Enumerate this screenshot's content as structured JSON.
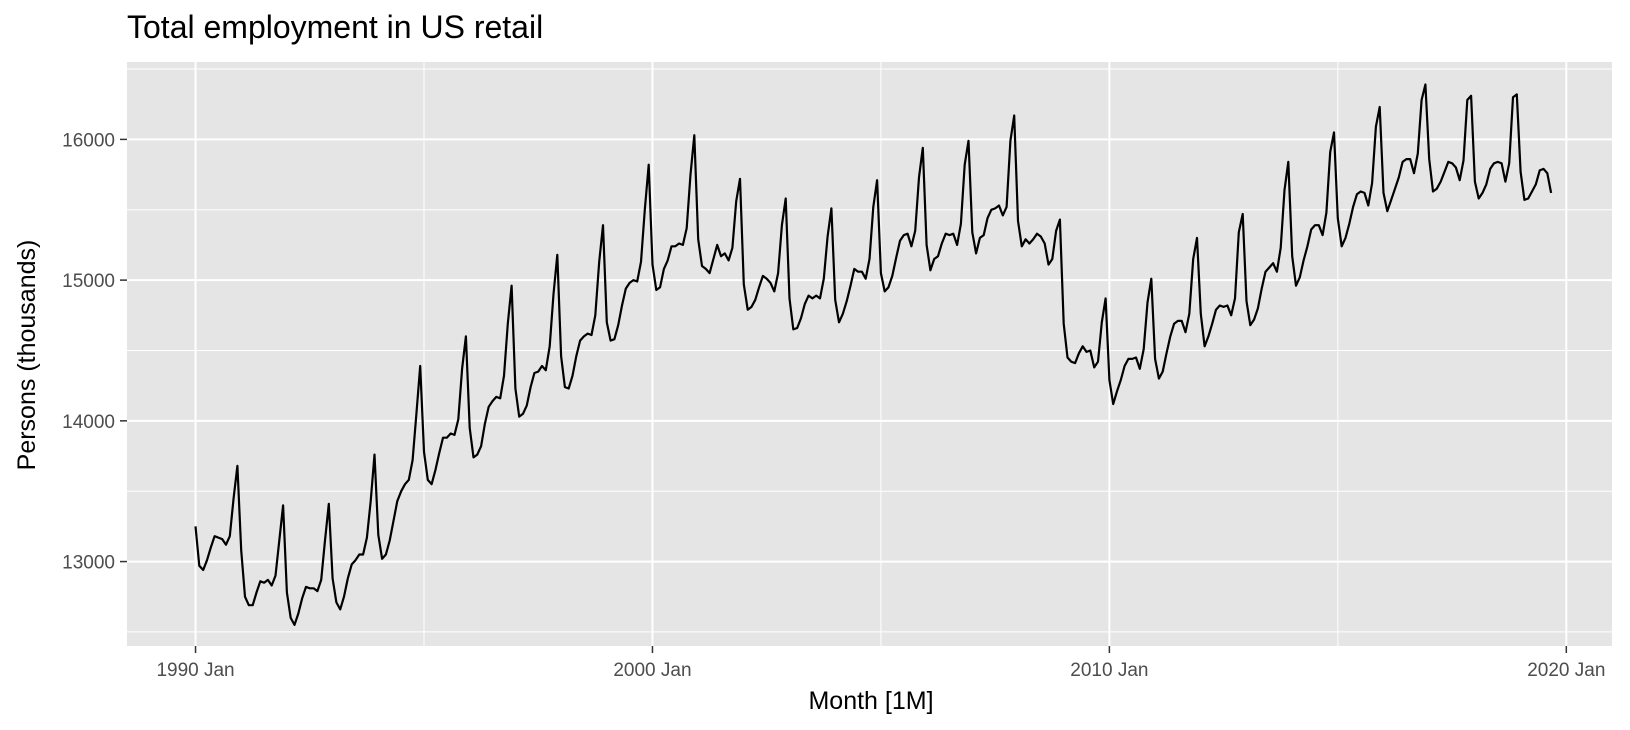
{
  "chart_data": {
    "type": "line",
    "title": "Total employment in US retail",
    "xlabel": "Month [1M]",
    "ylabel": "Persons (thousands)",
    "x_ticks": [
      {
        "value": 1990,
        "label": "1990 Jan"
      },
      {
        "value": 2000,
        "label": "2000 Jan"
      },
      {
        "value": 2010,
        "label": "2010 Jan"
      },
      {
        "value": 2020,
        "label": "2020 Jan"
      }
    ],
    "y_ticks": [
      13000,
      14000,
      15000,
      16000
    ],
    "xlim": [
      1988.5,
      2021.0
    ],
    "ylim": [
      12400,
      16550
    ],
    "grid": true,
    "colors": {
      "panel": "#e5e5e5",
      "grid": "#ffffff",
      "line": "#000000"
    },
    "x_start": "1990 Jan",
    "series": [
      {
        "values": [
          13250,
          12970,
          12940,
          13010,
          13100,
          13180,
          13170,
          13160,
          13120,
          13180,
          13450,
          13680,
          13080,
          12750,
          12690,
          12690,
          12780,
          12860,
          12850,
          12870,
          12830,
          12900,
          13150,
          13400,
          12780,
          12600,
          12550,
          12630,
          12740,
          12820,
          12810,
          12810,
          12790,
          12870,
          13150,
          13410,
          12880,
          12710,
          12660,
          12750,
          12880,
          12980,
          13010,
          13050,
          13050,
          13170,
          13430,
          13760,
          13190,
          13020,
          13050,
          13150,
          13290,
          13430,
          13500,
          13550,
          13580,
          13720,
          14050,
          14390,
          13780,
          13580,
          13550,
          13650,
          13770,
          13880,
          13880,
          13910,
          13900,
          14010,
          14370,
          14600,
          13950,
          13740,
          13760,
          13820,
          13980,
          14100,
          14140,
          14170,
          14160,
          14320,
          14690,
          14960,
          14230,
          14030,
          14050,
          14110,
          14240,
          14340,
          14350,
          14390,
          14360,
          14530,
          14900,
          15180,
          14460,
          14240,
          14230,
          14320,
          14460,
          14570,
          14600,
          14620,
          14610,
          14750,
          15130,
          15390,
          14700,
          14570,
          14580,
          14680,
          14820,
          14940,
          14980,
          15000,
          14990,
          15130,
          15500,
          15820,
          15110,
          14930,
          14950,
          15080,
          15140,
          15240,
          15240,
          15260,
          15250,
          15370,
          15750,
          16030,
          15290,
          15100,
          15080,
          15050,
          15150,
          15250,
          15170,
          15190,
          15140,
          15230,
          15560,
          15720,
          14970,
          14790,
          14810,
          14860,
          14950,
          15030,
          15010,
          14980,
          14920,
          15050,
          15390,
          15580,
          14870,
          14650,
          14660,
          14730,
          14830,
          14890,
          14870,
          14890,
          14870,
          15010,
          15310,
          15510,
          14860,
          14700,
          14760,
          14850,
          14960,
          15080,
          15060,
          15060,
          15010,
          15150,
          15520,
          15710,
          15050,
          14920,
          14950,
          15030,
          15160,
          15280,
          15320,
          15330,
          15240,
          15350,
          15730,
          15940,
          15250,
          15070,
          15150,
          15170,
          15260,
          15330,
          15320,
          15330,
          15250,
          15400,
          15820,
          15990,
          15340,
          15190,
          15300,
          15320,
          15440,
          15500,
          15510,
          15530,
          15460,
          15520,
          15990,
          16170,
          15420,
          15240,
          15290,
          15260,
          15290,
          15330,
          15310,
          15260,
          15110,
          15150,
          15350,
          15430,
          14690,
          14450,
          14420,
          14410,
          14480,
          14530,
          14490,
          14500,
          14380,
          14420,
          14700,
          14870,
          14290,
          14120,
          14210,
          14290,
          14390,
          14440,
          14440,
          14450,
          14370,
          14510,
          14840,
          15010,
          14440,
          14300,
          14350,
          14480,
          14600,
          14690,
          14710,
          14710,
          14630,
          14760,
          15150,
          15300,
          14760,
          14530,
          14600,
          14690,
          14790,
          14820,
          14810,
          14820,
          14750,
          14870,
          15340,
          15470,
          14850,
          14680,
          14720,
          14800,
          14940,
          15060,
          15090,
          15120,
          15060,
          15230,
          15640,
          15840,
          15170,
          14960,
          15020,
          15140,
          15240,
          15360,
          15390,
          15390,
          15320,
          15480,
          15910,
          16050,
          15440,
          15240,
          15300,
          15400,
          15520,
          15610,
          15630,
          15620,
          15530,
          15690,
          16090,
          16230,
          15620,
          15490,
          15570,
          15650,
          15730,
          15840,
          15860,
          15860,
          15760,
          15900,
          16280,
          16390,
          15860,
          15630,
          15650,
          15700,
          15770,
          15840,
          15830,
          15800,
          15710,
          15850,
          16280,
          16310,
          15700,
          15580,
          15620,
          15680,
          15790,
          15830,
          15840,
          15830,
          15700,
          15830,
          16300,
          16320,
          15770,
          15570,
          15580,
          15630,
          15680,
          15780,
          15790,
          15760,
          15620
        ]
      }
    ]
  }
}
